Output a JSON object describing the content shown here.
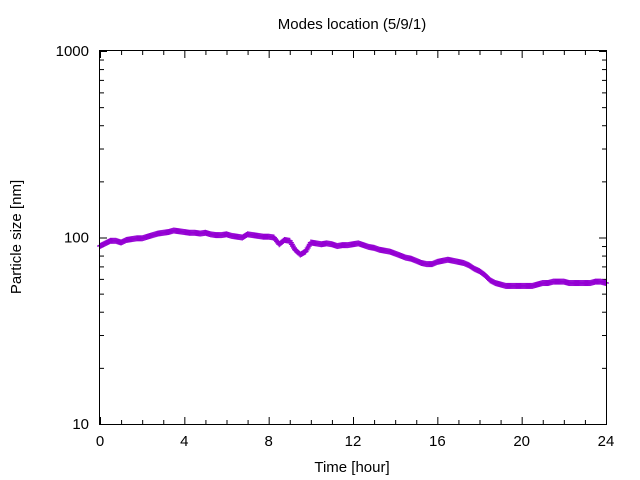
{
  "chart_data": {
    "type": "scatter",
    "title": "Modes location (5/9/1)",
    "xlabel": "Time [hour]",
    "ylabel": "Particle size [nm]",
    "xlim": [
      0,
      24
    ],
    "ylim": [
      10,
      1000
    ],
    "yscale": "log",
    "grid": false,
    "legend": "none",
    "x_ticks": [
      0,
      4,
      8,
      12,
      16,
      20,
      24
    ],
    "x_tick_labels": [
      "0",
      "4",
      "8",
      "12",
      "16",
      "20",
      "24"
    ],
    "y_ticks": [
      10,
      100,
      1000
    ],
    "y_tick_labels": [
      "10",
      "100",
      "1000"
    ],
    "marker_color": "#9400d3",
    "marker": "plus",
    "series": [
      {
        "x": [
          0.0,
          0.25,
          0.5,
          0.75,
          1.0,
          1.25,
          1.5,
          1.75,
          2.0,
          2.25,
          2.5,
          2.75,
          3.0,
          3.25,
          3.5,
          3.75,
          4.0,
          4.25,
          4.5,
          4.75,
          5.0,
          5.25,
          5.5,
          5.75,
          6.0,
          6.25,
          6.5,
          6.75,
          7.0,
          7.25,
          7.5,
          7.75,
          8.0,
          8.25,
          8.5,
          8.75,
          9.0,
          9.25,
          9.5,
          9.75,
          10.0,
          10.25,
          10.5,
          10.75,
          11.0,
          11.25,
          11.5,
          11.75,
          12.0,
          12.25,
          12.5,
          12.75,
          13.0,
          13.25,
          13.5,
          13.75,
          14.0,
          14.25,
          14.5,
          14.75,
          15.0,
          15.25,
          15.5,
          15.75,
          16.0,
          16.25,
          16.5,
          16.75,
          17.0,
          17.25,
          17.5,
          17.75,
          18.0,
          18.25,
          18.5,
          18.75,
          19.0,
          19.25,
          19.5,
          19.75,
          20.0,
          20.25,
          20.5,
          20.75,
          21.0,
          21.25,
          21.5,
          21.75,
          22.0,
          22.25,
          22.5,
          22.75,
          23.0,
          23.25,
          23.5,
          23.75,
          24.0
        ],
        "y": [
          90,
          93,
          96,
          96,
          94,
          97,
          98,
          99,
          99,
          101,
          103,
          105,
          106,
          107,
          109,
          108,
          107,
          106,
          106,
          105,
          106,
          104,
          103,
          103,
          104,
          102,
          101,
          100,
          104,
          103,
          102,
          101,
          101,
          100,
          92,
          97,
          96,
          86,
          81,
          84,
          94,
          93,
          92,
          93,
          92,
          90,
          91,
          91,
          92,
          93,
          91,
          89,
          88,
          86,
          85,
          84,
          82,
          80,
          78,
          77,
          75,
          73,
          72,
          72,
          74,
          75,
          76,
          75,
          74,
          73,
          71,
          68,
          66,
          63,
          59,
          57,
          56,
          55,
          55,
          55,
          55,
          55,
          55,
          56,
          57,
          57,
          58,
          58,
          58,
          57,
          57,
          57,
          57,
          57,
          58,
          58,
          57
        ]
      }
    ]
  }
}
